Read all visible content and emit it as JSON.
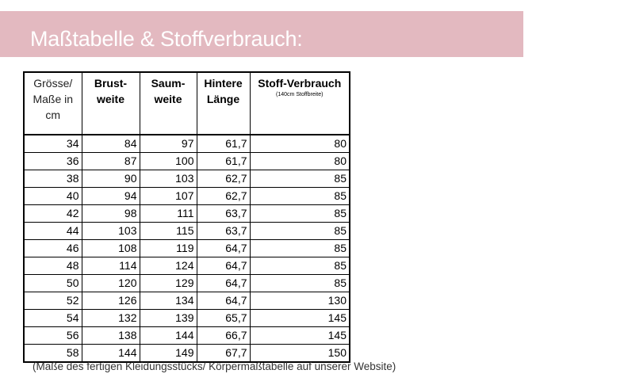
{
  "banner": {
    "title": "Maßtabelle & Stoffverbrauch:"
  },
  "table": {
    "headers": {
      "size": [
        "Grösse/",
        "Maße in",
        "cm"
      ],
      "brust": [
        "Brust-",
        "weite"
      ],
      "saum": [
        "Saum-",
        "weite"
      ],
      "laenge": [
        "Hintere",
        "Länge"
      ],
      "stoff": "Stoff-Verbrauch",
      "stoff_note": "(140cm Stoffbreite)"
    },
    "rows": [
      [
        "34",
        "84",
        "97",
        "61,7",
        "80"
      ],
      [
        "36",
        "87",
        "100",
        "61,7",
        "80"
      ],
      [
        "38",
        "90",
        "103",
        "62,7",
        "85"
      ],
      [
        "40",
        "94",
        "107",
        "62,7",
        "85"
      ],
      [
        "42",
        "98",
        "111",
        "63,7",
        "85"
      ],
      [
        "44",
        "103",
        "115",
        "63,7",
        "85"
      ],
      [
        "46",
        "108",
        "119",
        "64,7",
        "85"
      ],
      [
        "48",
        "114",
        "124",
        "64,7",
        "85"
      ],
      [
        "50",
        "120",
        "129",
        "64,7",
        "85"
      ],
      [
        "52",
        "126",
        "134",
        "64,7",
        "130"
      ],
      [
        "54",
        "132",
        "139",
        "65,7",
        "145"
      ],
      [
        "56",
        "138",
        "144",
        "66,7",
        "145"
      ],
      [
        "58",
        "144",
        "149",
        "67,7",
        "150"
      ]
    ]
  },
  "footnote": "(Maße des fertigen Kleidungsstücks/ Körpermaßtabelle auf unserer Website)",
  "colors": {
    "banner": "#e3b9c0",
    "banner_text": "#ffffff"
  }
}
